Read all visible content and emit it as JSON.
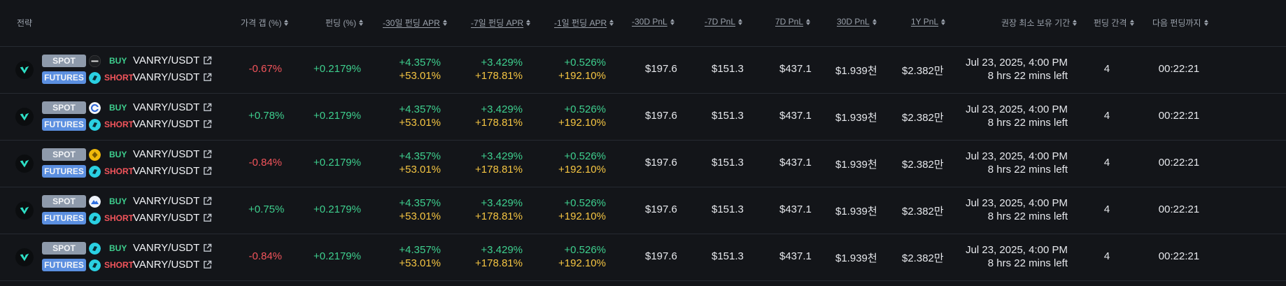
{
  "colors": {
    "background": "#131519",
    "positive": "#3ecf8e",
    "negative": "#f2545b",
    "apr_long": "#f5c542",
    "spot_badge": "#8e9aab",
    "futures_badge": "#5b8fe0"
  },
  "headers": [
    {
      "label": "전략",
      "sortable": false
    },
    {
      "label": "가격 갭 (%)",
      "sortable": false
    },
    {
      "label": "펀딩 (%)",
      "sortable": false
    },
    {
      "label": "-30일 펀딩 APR",
      "sortable": true
    },
    {
      "label": "-7일 펀딩 APR",
      "sortable": true
    },
    {
      "label": "-1일 펀딩 APR",
      "sortable": true
    },
    {
      "label": "-30D PnL",
      "sortable": true
    },
    {
      "label": "-7D PnL",
      "sortable": true
    },
    {
      "label": "7D PnL",
      "sortable": true
    },
    {
      "label": "30D PnL",
      "sortable": true
    },
    {
      "label": "1Y PnL",
      "sortable": true
    },
    {
      "label": "권장 최소 보유 기간",
      "sortable": false
    },
    {
      "label": "펀딩 간격",
      "sortable": false
    },
    {
      "label": "다음 펀딩까지",
      "sortable": false
    }
  ],
  "rows": [
    {
      "spot_badge": "SPOT",
      "futures_badge": "FUTURES",
      "spot_exchange_icon": "exchange-icon-black",
      "futures_exchange_icon": "exchange-icon-cyan",
      "buy_label": "BUY",
      "short_label": "SHORT",
      "spot_pair": "VANRY/USDT",
      "futures_pair": "VANRY/USDT",
      "price_gap": "-0.67%",
      "price_gap_dir": "negative",
      "funding": "+0.2179%",
      "apr30_a": "+4.357%",
      "apr30_b": "+53.01%",
      "apr7_a": "+3.429%",
      "apr7_b": "+178.81%",
      "apr1_a": "+0.526%",
      "apr1_b": "+192.10%",
      "pnl_m30": "$197.6",
      "pnl_m7": "$151.3",
      "pnl_7": "$437.1",
      "pnl_30": "$1.939천",
      "pnl_1y": "$2.382만",
      "hold_date": "Jul 23, 2025, 4:00 PM",
      "hold_left": "8 hrs 22 mins left",
      "interval": "4",
      "next_funding": "00:22:21"
    },
    {
      "spot_badge": "SPOT",
      "futures_badge": "FUTURES",
      "spot_exchange_icon": "exchange-icon-white-c",
      "futures_exchange_icon": "exchange-icon-cyan",
      "buy_label": "BUY",
      "short_label": "SHORT",
      "spot_pair": "VANRY/USDT",
      "futures_pair": "VANRY/USDT",
      "price_gap": "+0.78%",
      "price_gap_dir": "positive",
      "funding": "+0.2179%",
      "apr30_a": "+4.357%",
      "apr30_b": "+53.01%",
      "apr7_a": "+3.429%",
      "apr7_b": "+178.81%",
      "apr1_a": "+0.526%",
      "apr1_b": "+192.10%",
      "pnl_m30": "$197.6",
      "pnl_m7": "$151.3",
      "pnl_7": "$437.1",
      "pnl_30": "$1.939천",
      "pnl_1y": "$2.382만",
      "hold_date": "Jul 23, 2025, 4:00 PM",
      "hold_left": "8 hrs 22 mins left",
      "interval": "4",
      "next_funding": "00:22:21"
    },
    {
      "spot_badge": "SPOT",
      "futures_badge": "FUTURES",
      "spot_exchange_icon": "exchange-icon-yellow",
      "futures_exchange_icon": "exchange-icon-cyan",
      "buy_label": "BUY",
      "short_label": "SHORT",
      "spot_pair": "VANRY/USDT",
      "futures_pair": "VANRY/USDT",
      "price_gap": "-0.84%",
      "price_gap_dir": "negative",
      "funding": "+0.2179%",
      "apr30_a": "+4.357%",
      "apr30_b": "+53.01%",
      "apr7_a": "+3.429%",
      "apr7_b": "+178.81%",
      "apr1_a": "+0.526%",
      "apr1_b": "+192.10%",
      "pnl_m30": "$197.6",
      "pnl_m7": "$151.3",
      "pnl_7": "$437.1",
      "pnl_30": "$1.939천",
      "pnl_1y": "$2.382만",
      "hold_date": "Jul 23, 2025, 4:00 PM",
      "hold_left": "8 hrs 22 mins left",
      "interval": "4",
      "next_funding": "00:22:21"
    },
    {
      "spot_badge": "SPOT",
      "futures_badge": "FUTURES",
      "spot_exchange_icon": "exchange-icon-blue-mountain",
      "futures_exchange_icon": "exchange-icon-cyan",
      "buy_label": "BUY",
      "short_label": "SHORT",
      "spot_pair": "VANRY/USDT",
      "futures_pair": "VANRY/USDT",
      "price_gap": "+0.75%",
      "price_gap_dir": "positive",
      "funding": "+0.2179%",
      "apr30_a": "+4.357%",
      "apr30_b": "+53.01%",
      "apr7_a": "+3.429%",
      "apr7_b": "+178.81%",
      "apr1_a": "+0.526%",
      "apr1_b": "+192.10%",
      "pnl_m30": "$197.6",
      "pnl_m7": "$151.3",
      "pnl_7": "$437.1",
      "pnl_30": "$1.939천",
      "pnl_1y": "$2.382만",
      "hold_date": "Jul 23, 2025, 4:00 PM",
      "hold_left": "8 hrs 22 mins left",
      "interval": "4",
      "next_funding": "00:22:21"
    },
    {
      "spot_badge": "SPOT",
      "futures_badge": "FUTURES",
      "spot_exchange_icon": "exchange-icon-cyan",
      "futures_exchange_icon": "exchange-icon-cyan",
      "buy_label": "BUY",
      "short_label": "SHORT",
      "spot_pair": "VANRY/USDT",
      "futures_pair": "VANRY/USDT",
      "price_gap": "-0.84%",
      "price_gap_dir": "negative",
      "funding": "+0.2179%",
      "apr30_a": "+4.357%",
      "apr30_b": "+53.01%",
      "apr7_a": "+3.429%",
      "apr7_b": "+178.81%",
      "apr1_a": "+0.526%",
      "apr1_b": "+192.10%",
      "pnl_m30": "$197.6",
      "pnl_m7": "$151.3",
      "pnl_7": "$437.1",
      "pnl_30": "$1.939천",
      "pnl_1y": "$2.382만",
      "hold_date": "Jul 23, 2025, 4:00 PM",
      "hold_left": "8 hrs 22 mins left",
      "interval": "4",
      "next_funding": "00:22:21"
    }
  ]
}
